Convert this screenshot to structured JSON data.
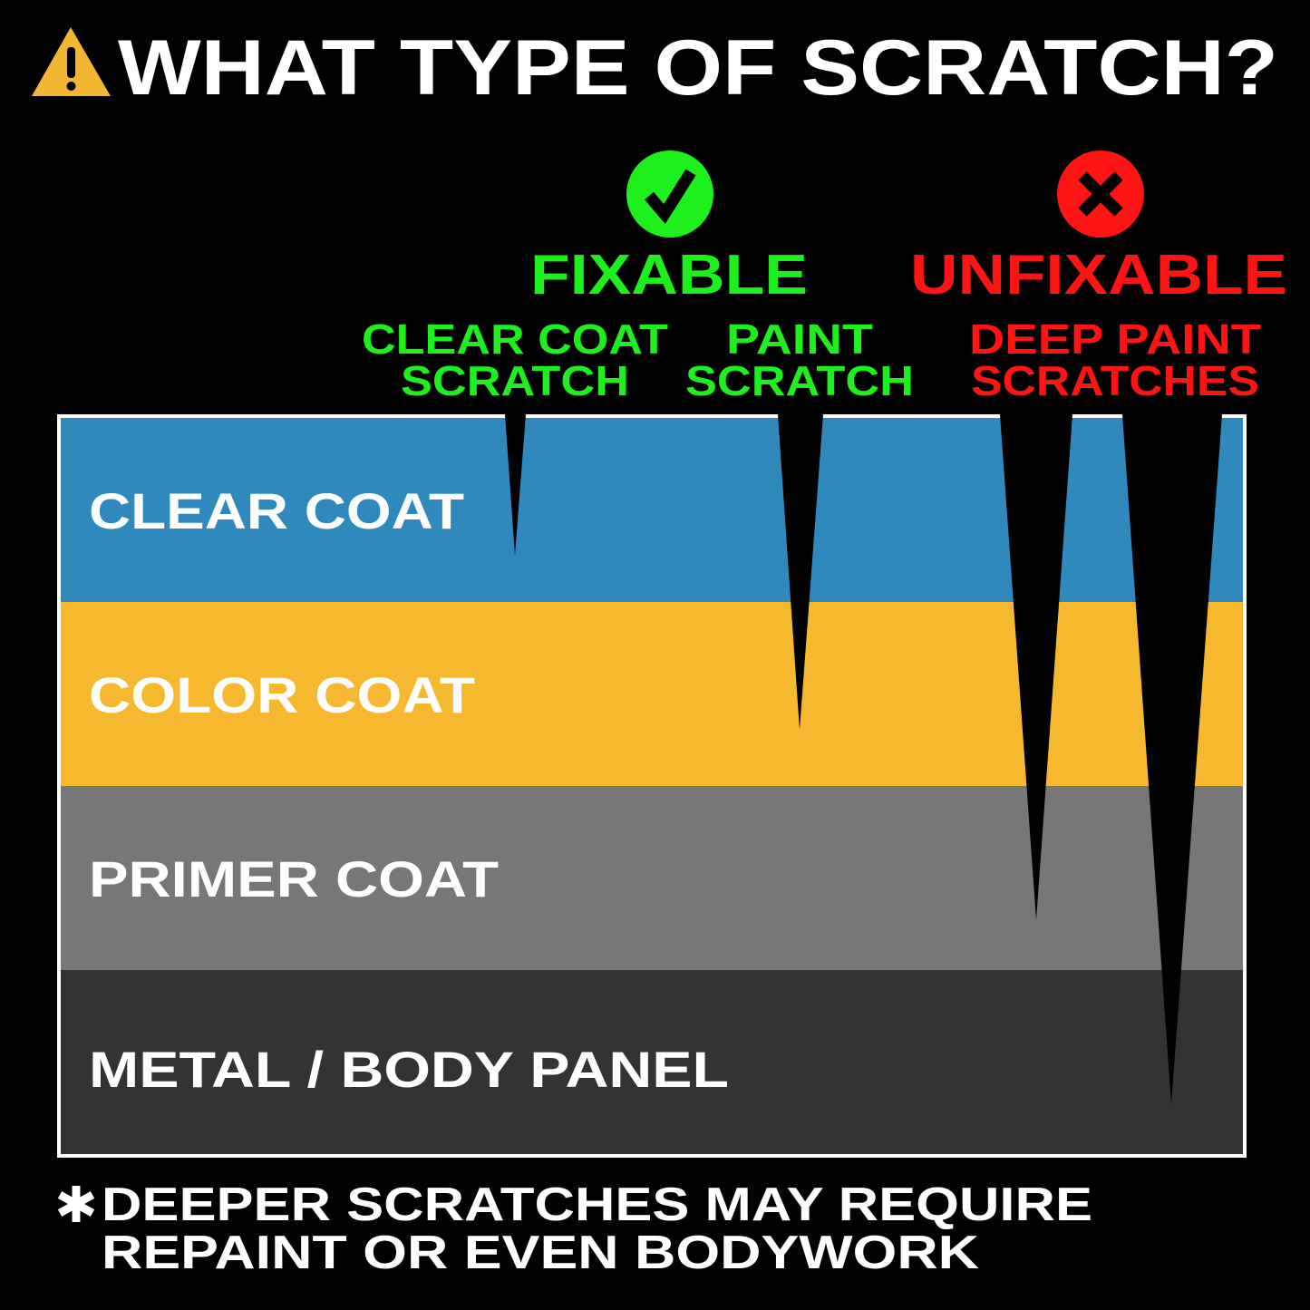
{
  "title": "WHAT TYPE OF SCRATCH?",
  "icons": {
    "warning": "warning-triangle-icon",
    "fixable": "check-circle-icon",
    "unfixable": "x-circle-icon",
    "footnote": "asterisk-icon"
  },
  "colors": {
    "background": "#000000",
    "fixable": "#1ef01e",
    "unfixable": "#ff1414",
    "warning": "#f2b632",
    "clear_coat": "#2f89bd",
    "color_coat": "#f5b82e",
    "primer_coat": "#777777",
    "metal": "#333333"
  },
  "fixable": {
    "label": "FIXABLE",
    "types": [
      {
        "line1": "CLEAR COAT",
        "line2": "SCRATCH"
      },
      {
        "line1": "PAINT",
        "line2": "SCRATCH"
      }
    ]
  },
  "unfixable": {
    "label": "UNFIXABLE",
    "types": [
      {
        "line1": "DEEP PAINT",
        "line2": "SCRATCHES"
      }
    ]
  },
  "layers": [
    {
      "label": "CLEAR COAT"
    },
    {
      "label": "COLOR COAT"
    },
    {
      "label": "PRIMER COAT"
    },
    {
      "label": "METAL / BODY PANEL"
    }
  ],
  "footnote": {
    "line1": "DEEPER SCRATCHES MAY REQUIRE",
    "line2": "REPAINT OR EVEN BODYWORK"
  }
}
